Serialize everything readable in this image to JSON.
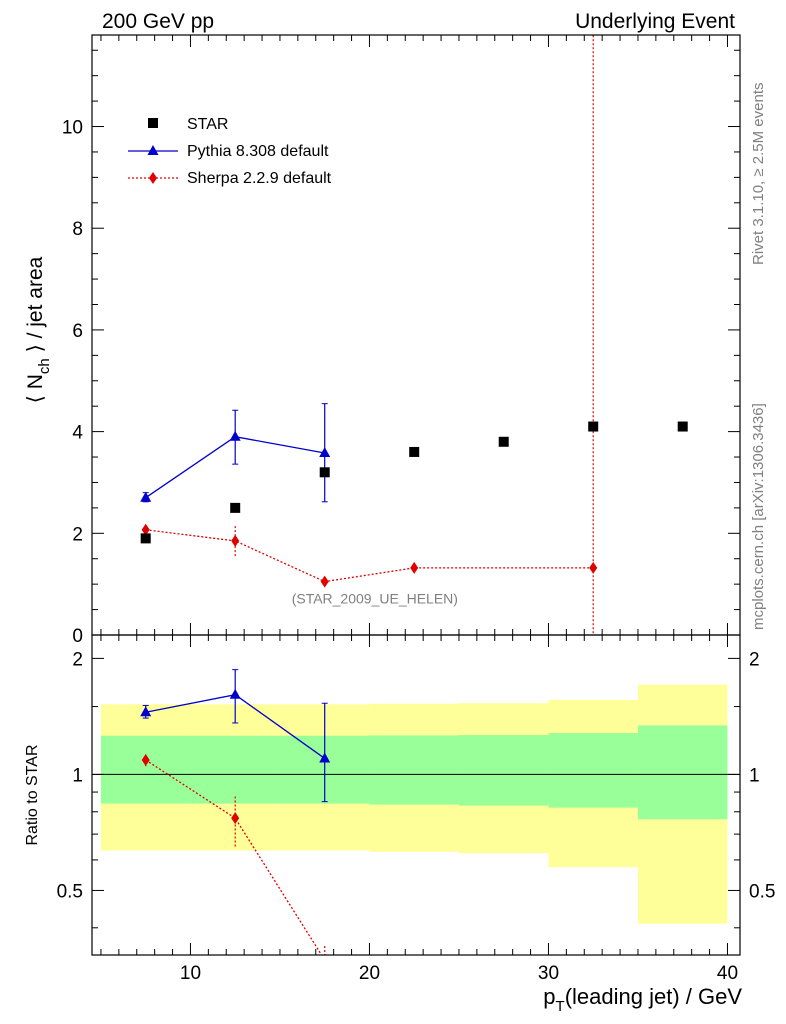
{
  "header": {
    "left": "200 GeV pp",
    "right": "Underlying Event"
  },
  "side_text": {
    "rivet": "Rivet 3.1.10, ≥ 2.5M events",
    "mcplots": "mcplots.cern.ch [arXiv:1306.3436]"
  },
  "chart_data": [
    {
      "type": "scatter",
      "panel": "main",
      "ylabel": "⟨ N_ch ⟩ / jet area",
      "xlim": [
        4.5,
        40.7
      ],
      "ylim": [
        0,
        11.8
      ],
      "yticks": [
        0,
        2,
        4,
        6,
        8,
        10
      ],
      "annotation": "(STAR_2009_UE_HELEN)",
      "legend_position": "top-left",
      "series": [
        {
          "name": "STAR",
          "color": "#000000",
          "marker": "square",
          "x": [
            7.5,
            12.5,
            17.5,
            22.5,
            27.5,
            32.5,
            37.5
          ],
          "y": [
            1.9,
            2.5,
            3.2,
            3.6,
            3.8,
            4.1,
            4.1
          ]
        },
        {
          "name": "Pythia 8.308 default",
          "color": "#0000cc",
          "marker": "triangle",
          "line": "solid",
          "x": [
            7.5,
            12.5,
            17.5
          ],
          "y": [
            2.7,
            3.9,
            3.58
          ],
          "err": [
            [
              2.62,
              2.8
            ],
            [
              3.36,
              4.42
            ],
            [
              2.62,
              4.55
            ]
          ]
        },
        {
          "name": "Sherpa 2.2.9 default",
          "color": "#e00000",
          "marker": "diamond",
          "line": "dotted",
          "x": [
            7.5,
            12.5,
            17.5,
            22.5,
            32.5
          ],
          "y": [
            2.07,
            1.85,
            1.05,
            1.32,
            1.32
          ],
          "err": [
            [
              2.0,
              2.12
            ],
            [
              1.55,
              2.15
            ],
            [
              0.95,
              1.15
            ],
            [
              1.28,
              1.36
            ],
            [
              -5,
              25
            ]
          ]
        }
      ]
    },
    {
      "type": "line",
      "panel": "ratio",
      "xlabel": "p_T(leading jet) / GeV",
      "ylabel": "Ratio to STAR",
      "xlim": [
        4.5,
        40.7
      ],
      "ylim": [
        0.34,
        2.3
      ],
      "yticks": [
        0.5,
        1,
        2
      ],
      "xticks": [
        10,
        20,
        30,
        40
      ],
      "bands": {
        "edges": [
          5,
          10,
          15,
          20,
          25,
          30,
          35,
          40
        ],
        "inner": [
          [
            0.84,
            1.26
          ],
          [
            0.84,
            1.26
          ],
          [
            0.84,
            1.26
          ],
          [
            0.835,
            1.262
          ],
          [
            0.83,
            1.265
          ],
          [
            0.82,
            1.28
          ],
          [
            0.765,
            1.34
          ]
        ],
        "outer": [
          [
            0.635,
            1.52
          ],
          [
            0.635,
            1.52
          ],
          [
            0.635,
            1.52
          ],
          [
            0.63,
            1.525
          ],
          [
            0.625,
            1.53
          ],
          [
            0.575,
            1.56
          ],
          [
            0.41,
            1.71
          ]
        ]
      },
      "series": [
        {
          "name": "Pythia 8.308 default",
          "color": "#0000cc",
          "x": [
            7.5,
            12.5,
            17.5
          ],
          "y": [
            1.45,
            1.61,
            1.1
          ],
          "err": [
            [
              1.4,
              1.51
            ],
            [
              1.36,
              1.87
            ],
            [
              0.85,
              1.53
            ]
          ]
        },
        {
          "name": "Sherpa 2.2.9 default",
          "color": "#e00000",
          "x": [
            7.5,
            12.5,
            17.5
          ],
          "y": [
            1.09,
            0.77,
            0.33
          ],
          "err": [
            [
              1.05,
              1.13
            ],
            [
              0.65,
              0.88
            ],
            [
              0.3,
              0.36
            ]
          ]
        }
      ]
    }
  ]
}
